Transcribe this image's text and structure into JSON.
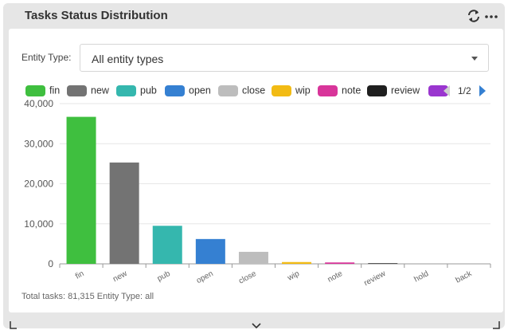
{
  "widget": {
    "title": "Tasks Status Distribution",
    "refresh_icon": "refresh-icon",
    "more_icon": "more-horizontal-icon"
  },
  "filter": {
    "label": "Entity Type:",
    "value": "All entity types",
    "caret_icon": "caret-down-icon"
  },
  "legend": {
    "page": "1/2",
    "items": [
      {
        "label": "fin",
        "color": "#3fbf3f"
      },
      {
        "label": "new",
        "color": "#737373"
      },
      {
        "label": "pub",
        "color": "#35b7ae"
      },
      {
        "label": "open",
        "color": "#3580d2"
      },
      {
        "label": "close",
        "color": "#bdbdbd"
      },
      {
        "label": "wip",
        "color": "#f2bb14"
      },
      {
        "label": "note",
        "color": "#d8359a"
      },
      {
        "label": "review",
        "color": "#1f1f1f"
      },
      {
        "label": "",
        "color": "#9a36cf"
      }
    ]
  },
  "chart_data": {
    "type": "bar",
    "categories": [
      "fin",
      "new",
      "pub",
      "open",
      "close",
      "wip",
      "note",
      "review",
      "hold",
      "back"
    ],
    "values": [
      36700,
      25300,
      9500,
      6200,
      3000,
      450,
      350,
      150,
      0,
      0
    ],
    "colors": [
      "#3fbf3f",
      "#737373",
      "#35b7ae",
      "#3580d2",
      "#bdbdbd",
      "#f2bb14",
      "#d8359a",
      "#1f1f1f",
      "#9a36cf",
      "#e07a14"
    ],
    "yticks": [
      "0",
      "10,000",
      "20,000",
      "30,000",
      "40,000"
    ],
    "ylim": [
      0,
      40000
    ]
  },
  "footer": {
    "text": "Total tasks: 81,315 Entity Type: all"
  },
  "bottom": {
    "resize_left_icon": "resize-corner-icon",
    "expand_icon": "chevron-down-icon",
    "resize_right_icon": "resize-corner-icon"
  }
}
